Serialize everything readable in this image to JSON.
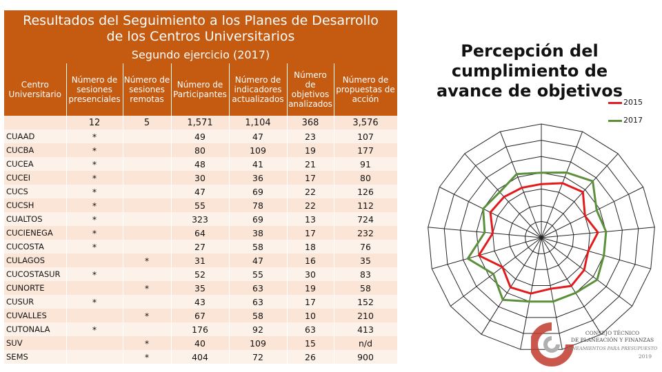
{
  "banner": {
    "title_line1": "Resultados del Seguimiento a los Planes de Desarrollo",
    "title_line2": "de los Centros Universitarios",
    "subtitle": "Segundo ejercicio (2017)"
  },
  "table": {
    "headers": [
      "Centro Universitario",
      "Número de sesiones presenciales",
      "Número de sesiones remotas",
      "Número de Participantes",
      "Número de indicadores actualizados",
      "Número de objetivos analizados",
      "Número de propuestas de acción"
    ],
    "totals": [
      "",
      "12",
      "5",
      "1,571",
      "1,104",
      "368",
      "3,576"
    ],
    "rows": [
      [
        "CUAAD",
        "*",
        "",
        "49",
        "47",
        "23",
        "107"
      ],
      [
        "CUCBA",
        "*",
        "",
        "80",
        "109",
        "19",
        "177"
      ],
      [
        "CUCEA",
        "*",
        "",
        "48",
        "41",
        "21",
        "91"
      ],
      [
        "CUCEI",
        "*",
        "",
        "30",
        "36",
        "17",
        "80"
      ],
      [
        "CUCS",
        "*",
        "",
        "47",
        "69",
        "22",
        "126"
      ],
      [
        "CUCSH",
        "*",
        "",
        "55",
        "78",
        "22",
        "112"
      ],
      [
        "CUALTOS",
        "*",
        "",
        "323",
        "69",
        "13",
        "724"
      ],
      [
        "CUCIENEGA",
        "*",
        "",
        "64",
        "38",
        "17",
        "232"
      ],
      [
        "CUCOSTA",
        "*",
        "",
        "27",
        "58",
        "18",
        "76"
      ],
      [
        "CULAGOS",
        "",
        "*",
        "31",
        "47",
        "16",
        "35"
      ],
      [
        "CUCOSTASUR",
        "*",
        "",
        "52",
        "55",
        "30",
        "83"
      ],
      [
        "CUNORTE",
        "",
        "*",
        "35",
        "63",
        "19",
        "58"
      ],
      [
        "CUSUR",
        "*",
        "",
        "43",
        "63",
        "17",
        "152"
      ],
      [
        "CUVALLES",
        "",
        "*",
        "67",
        "58",
        "10",
        "210"
      ],
      [
        "CUTONALA",
        "*",
        "",
        "176",
        "92",
        "63",
        "413"
      ],
      [
        "SUV",
        "",
        "*",
        "40",
        "109",
        "15",
        "n/d"
      ],
      [
        "SEMS",
        "",
        "*",
        "404",
        "72",
        "26",
        "900"
      ]
    ]
  },
  "radar": {
    "title": "Percepción del cumplimiento de avance de objetivos"
  },
  "chart_data": {
    "type": "radar",
    "title": "Percepción del cumplimiento de avance de objetivos",
    "axes": 17,
    "rings": 7,
    "series": [
      {
        "name": "2015",
        "color": "#e31a1c",
        "values": [
          3.3,
          3.6,
          3.8,
          3.0,
          3.5,
          3.0,
          3.3,
          3.5,
          3.2,
          3.5,
          3.6,
          3.0,
          4.0,
          3.0,
          3.5,
          3.4,
          3.3
        ]
      },
      {
        "name": "2017",
        "color": "#5b8f3a",
        "values": [
          4.0,
          4.3,
          4.7,
          3.8,
          4.0,
          4.0,
          4.3,
          4.0,
          4.0,
          4.0,
          4.5,
          3.7,
          4.7,
          3.5,
          4.0,
          3.8,
          4.2
        ]
      }
    ],
    "legend_position": "top-right"
  },
  "logo": {
    "line1": "CONSEJO TÉCNICO",
    "line2": "DE PLANEACIÓN Y FINANZAS",
    "line3": "LINEAMIENTOS PARA PRESUPUESTO",
    "year": "2019"
  }
}
